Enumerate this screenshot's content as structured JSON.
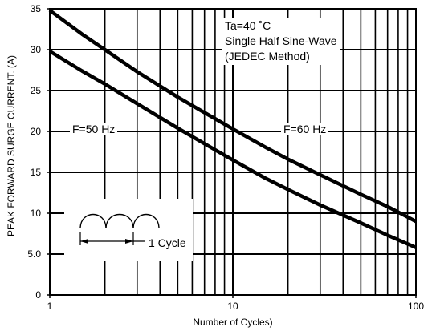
{
  "chart_data": {
    "type": "line",
    "xscale": "log",
    "xlim": [
      1,
      100
    ],
    "ylim": [
      0,
      35
    ],
    "xlabel": "Number of Cycles)",
    "ylabel": "PEAK FORWARD SURGE CURRENT. (A)",
    "x_ticks": [
      "1",
      "10",
      "100"
    ],
    "y_ticks": [
      "0",
      "5.0",
      "10",
      "15",
      "20",
      "25",
      "30",
      "35"
    ],
    "grid": true,
    "series": [
      {
        "name": "F=60 Hz",
        "x": [
          1,
          1.5,
          2,
          3,
          5,
          7,
          10,
          15,
          20,
          30,
          50,
          70,
          100
        ],
        "y": [
          34.8,
          31.9,
          30.0,
          27.3,
          24.2,
          22.3,
          20.3,
          18.1,
          16.6,
          14.7,
          12.3,
          10.8,
          9.0
        ]
      },
      {
        "name": "F=50 Hz",
        "x": [
          1,
          1.5,
          2,
          3,
          5,
          7,
          10,
          15,
          20,
          30,
          50,
          70,
          100
        ],
        "y": [
          29.8,
          27.4,
          25.8,
          23.4,
          20.4,
          18.5,
          16.5,
          14.3,
          12.9,
          11.0,
          8.8,
          7.3,
          5.8
        ]
      }
    ],
    "annotations": {
      "conditions": [
        "Ta=40 ˚C",
        "Single Half Sine-Wave",
        "(JEDEC Method)"
      ],
      "cycle_label": "1 Cycle"
    }
  }
}
